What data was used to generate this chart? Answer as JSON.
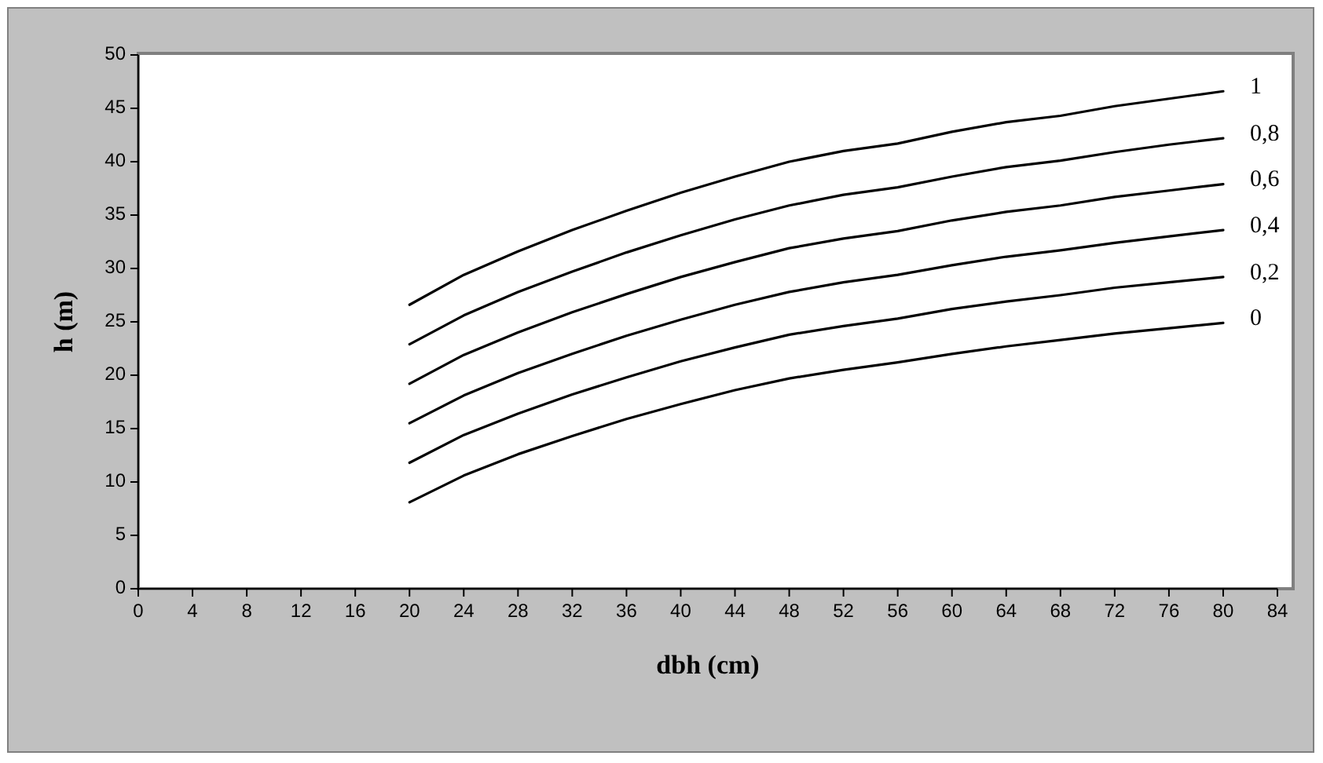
{
  "chart_data": {
    "type": "line",
    "xlabel": "dbh (cm)",
    "ylabel": "h (m)",
    "x": [
      20,
      24,
      28,
      32,
      36,
      40,
      44,
      48,
      52,
      56,
      60,
      64,
      68,
      72,
      76,
      80
    ],
    "xlim": [
      0,
      84
    ],
    "xticks": [
      0,
      4,
      8,
      12,
      16,
      20,
      24,
      28,
      32,
      36,
      40,
      44,
      48,
      52,
      56,
      60,
      64,
      68,
      72,
      76,
      80,
      84
    ],
    "ylim": [
      0,
      50
    ],
    "yticks": [
      0,
      5,
      10,
      15,
      20,
      25,
      30,
      35,
      40,
      45,
      50
    ],
    "grid": false,
    "marker": "none",
    "line_style": "solid",
    "series": [
      {
        "name": "1",
        "color": "#000000",
        "values": [
          26.6,
          29.4,
          31.6,
          33.6,
          35.4,
          37.1,
          38.6,
          40.0,
          41.0,
          41.7,
          42.8,
          43.7,
          44.3,
          45.2,
          45.9,
          46.6
        ]
      },
      {
        "name": "0,8",
        "color": "#000000",
        "values": [
          22.9,
          25.6,
          27.8,
          29.7,
          31.5,
          33.1,
          34.6,
          35.9,
          36.9,
          37.6,
          38.6,
          39.5,
          40.1,
          40.9,
          41.6,
          42.2
        ]
      },
      {
        "name": "0,6",
        "color": "#000000",
        "values": [
          19.2,
          21.9,
          24.0,
          25.9,
          27.6,
          29.2,
          30.6,
          31.9,
          32.8,
          33.5,
          34.5,
          35.3,
          35.9,
          36.7,
          37.3,
          37.9
        ]
      },
      {
        "name": "0,4",
        "color": "#000000",
        "values": [
          15.5,
          18.1,
          20.2,
          22.0,
          23.7,
          25.2,
          26.6,
          27.8,
          28.7,
          29.4,
          30.3,
          31.1,
          31.7,
          32.4,
          33.0,
          33.6
        ]
      },
      {
        "name": "0,2",
        "color": "#000000",
        "values": [
          11.8,
          14.4,
          16.4,
          18.2,
          19.8,
          21.3,
          22.6,
          23.8,
          24.6,
          25.3,
          26.2,
          26.9,
          27.5,
          28.2,
          28.7,
          29.2
        ]
      },
      {
        "name": "0",
        "color": "#000000",
        "values": [
          8.1,
          10.6,
          12.6,
          14.3,
          15.9,
          17.3,
          18.6,
          19.7,
          20.5,
          21.2,
          22.0,
          22.7,
          23.3,
          23.9,
          24.4,
          24.9
        ]
      }
    ]
  }
}
